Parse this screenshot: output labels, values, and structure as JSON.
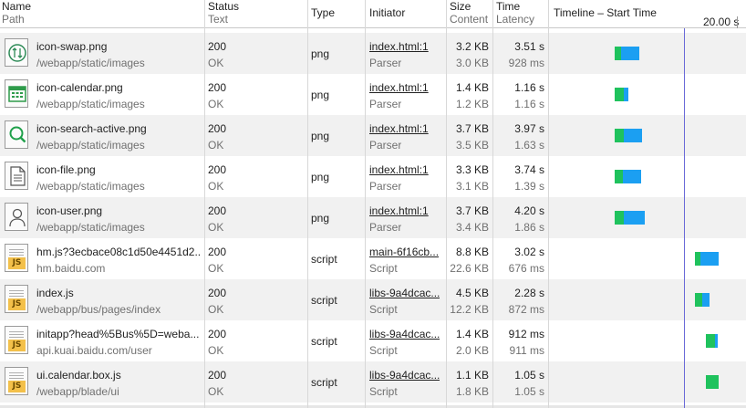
{
  "header": {
    "name_label": "Name",
    "path_label": "Path",
    "status_label": "Status",
    "text_label": "Text",
    "type_label": "Type",
    "initiator_label": "Initiator",
    "size_label": "Size",
    "content_label": "Content",
    "time_label": "Time",
    "latency_label": "Latency",
    "timeline_label": "Timeline – Start Time",
    "tick_label": "20.00 s"
  },
  "colors": {
    "waiting": "#1fc25d",
    "receiving": "#1b9ff2",
    "marker": "#6a6ad8"
  },
  "rows": [
    {
      "name": "icon-swap.png",
      "path": "/webapp/static/images",
      "status": "200",
      "status_text": "OK",
      "type": "png",
      "initiator": "index.html:1",
      "initiator_type": "Parser",
      "size": "3.2 KB",
      "content": "3.0 KB",
      "time": "3.51 s",
      "latency": "928 ms",
      "icon": "swap-icon",
      "bar": {
        "start": 0.337,
        "wait": 0.03,
        "recv": 0.095
      }
    },
    {
      "name": "icon-calendar.png",
      "path": "/webapp/static/images",
      "status": "200",
      "status_text": "OK",
      "type": "png",
      "initiator": "index.html:1",
      "initiator_type": "Parser",
      "size": "1.4 KB",
      "content": "1.2 KB",
      "time": "1.16 s",
      "latency": "1.16 s",
      "icon": "calendar-icon",
      "bar": {
        "start": 0.337,
        "wait": 0.045,
        "recv": 0.025
      }
    },
    {
      "name": "icon-search-active.png",
      "path": "/webapp/static/images",
      "status": "200",
      "status_text": "OK",
      "type": "png",
      "initiator": "index.html:1",
      "initiator_type": "Parser",
      "size": "3.7 KB",
      "content": "3.5 KB",
      "time": "3.97 s",
      "latency": "1.63 s",
      "icon": "search-icon",
      "bar": {
        "start": 0.337,
        "wait": 0.045,
        "recv": 0.095
      }
    },
    {
      "name": "icon-file.png",
      "path": "/webapp/static/images",
      "status": "200",
      "status_text": "OK",
      "type": "png",
      "initiator": "index.html:1",
      "initiator_type": "Parser",
      "size": "3.3 KB",
      "content": "3.1 KB",
      "time": "3.74 s",
      "latency": "1.39 s",
      "icon": "file-icon",
      "bar": {
        "start": 0.337,
        "wait": 0.04,
        "recv": 0.095
      }
    },
    {
      "name": "icon-user.png",
      "path": "/webapp/static/images",
      "status": "200",
      "status_text": "OK",
      "type": "png",
      "initiator": "index.html:1",
      "initiator_type": "Parser",
      "size": "3.7 KB",
      "content": "3.4 KB",
      "time": "4.20 s",
      "latency": "1.86 s",
      "icon": "user-icon",
      "bar": {
        "start": 0.337,
        "wait": 0.045,
        "recv": 0.105
      }
    },
    {
      "name": "hm.js?3ecbace08c1d50e4451d2...",
      "path": "hm.baidu.com",
      "status": "200",
      "status_text": "OK",
      "type": "script",
      "initiator": "main-6f16cb...",
      "initiator_type": "Script",
      "size": "8.8 KB",
      "content": "22.6 KB",
      "time": "3.02 s",
      "latency": "676 ms",
      "icon": "js-file-icon",
      "bar": {
        "start": 0.743,
        "wait": 0.025,
        "recv": 0.095
      }
    },
    {
      "name": "index.js",
      "path": "/webapp/bus/pages/index",
      "status": "200",
      "status_text": "OK",
      "type": "script",
      "initiator": "libs-9a4dcac...",
      "initiator_type": "Script",
      "size": "4.5 KB",
      "content": "12.2 KB",
      "time": "2.28 s",
      "latency": "872 ms",
      "icon": "js-file-icon",
      "bar": {
        "start": 0.743,
        "wait": 0.035,
        "recv": 0.04
      }
    },
    {
      "name": "initapp?head%5Bus%5D=weba...",
      "path": "api.kuai.baidu.com/user",
      "status": "200",
      "status_text": "OK",
      "type": "script",
      "initiator": "libs-9a4dcac...",
      "initiator_type": "Script",
      "size": "1.4 KB",
      "content": "2.0 KB",
      "time": "912 ms",
      "latency": "911 ms",
      "icon": "js-file-icon",
      "bar": {
        "start": 0.798,
        "wait": 0.045,
        "recv": 0.012
      }
    },
    {
      "name": "ui.calendar.box.js",
      "path": "/webapp/blade/ui",
      "status": "200",
      "status_text": "OK",
      "type": "script",
      "initiator": "libs-9a4dcac...",
      "initiator_type": "Script",
      "size": "1.1 KB",
      "content": "1.8 KB",
      "time": "1.05 s",
      "latency": "1.05 s",
      "icon": "js-file-icon",
      "bar": {
        "start": 0.798,
        "wait": 0.065,
        "recv": 0.0
      }
    }
  ]
}
